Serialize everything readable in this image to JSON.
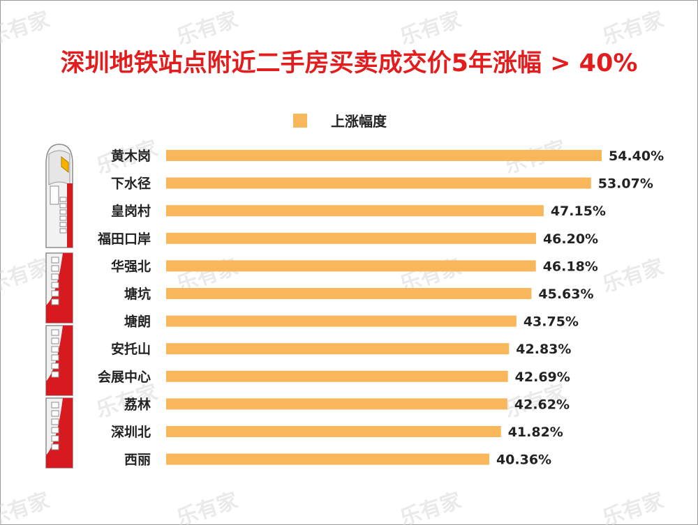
{
  "title": "深圳地铁站点附近二手房买卖成交价5年涨幅 > 40%",
  "watermark": "乐有家",
  "colors": {
    "bar": "#f7b75a",
    "title": "#e31d1d",
    "train_red": "#d71920"
  },
  "legend": {
    "label": "上涨幅度"
  },
  "chart_data": {
    "type": "bar",
    "orientation": "horizontal",
    "title": "深圳地铁站点附近二手房买卖成交价5年涨幅 > 40%",
    "categories": [
      "黄木岗",
      "下水径",
      "皇岗村",
      "福田口岸",
      "华强北",
      "塘坑",
      "塘朗",
      "安托山",
      "会展中心",
      "荔林",
      "深圳北",
      "西丽"
    ],
    "series": [
      {
        "name": "上涨幅度",
        "values": [
          54.4,
          53.07,
          47.15,
          46.2,
          46.18,
          45.63,
          43.75,
          42.83,
          42.69,
          42.62,
          41.82,
          40.36
        ]
      }
    ],
    "labels": [
      "54.40%",
      "53.07%",
      "47.15%",
      "46.20%",
      "46.18%",
      "45.63%",
      "43.75%",
      "42.83%",
      "42.69%",
      "42.62%",
      "41.82%",
      "40.36%"
    ],
    "xlim": [
      0,
      55
    ],
    "unit": "%",
    "grid": false,
    "legend_position": "top"
  }
}
